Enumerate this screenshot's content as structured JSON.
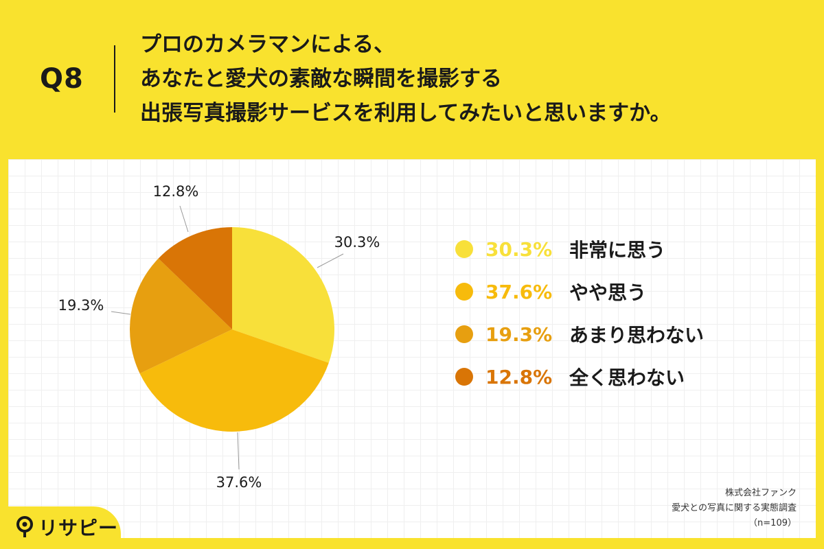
{
  "question": {
    "number": "Q8",
    "lines": [
      "プロのカメラマンによる、",
      "あなたと愛犬の素敵な瞬間を撮影する",
      "出張写真撮影サービスを利用してみたいと思いますか。"
    ]
  },
  "chart_data": {
    "type": "pie",
    "start_angle_deg": 0,
    "direction": "clockwise",
    "slices": [
      {
        "label": "非常に思う",
        "value": 30.3,
        "display": "30.3%",
        "color": "#f8e03a"
      },
      {
        "label": "やや思う",
        "value": 37.6,
        "display": "37.6%",
        "color": "#f7bb0c"
      },
      {
        "label": "あまり思わない",
        "value": 19.3,
        "display": "19.3%",
        "color": "#e79f10"
      },
      {
        "label": "全く思わない",
        "value": 12.8,
        "display": "12.8%",
        "color": "#d97506"
      }
    ],
    "legend_position": "right"
  },
  "source": {
    "company": "株式会社ファンク",
    "survey": "愛犬との写真に関する実態調査",
    "sample": "（n=109）"
  },
  "logo": {
    "text": "リサピー",
    "icon": "magnifier-pin-icon"
  }
}
